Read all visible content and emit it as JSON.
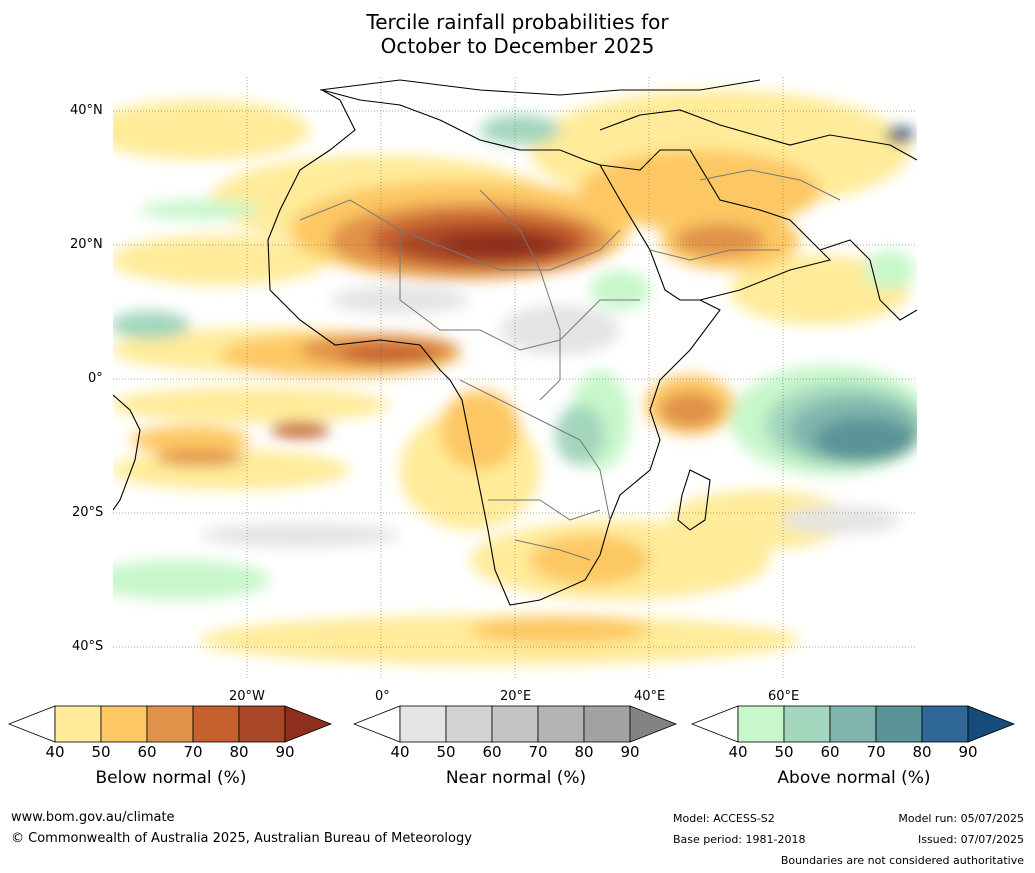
{
  "title": {
    "line1": "Tercile rainfall probabilities for",
    "line2": "October to December 2025"
  },
  "map": {
    "lat_labels": [
      "40°N",
      "20°N",
      "0°",
      "20°S",
      "40°S"
    ],
    "lon_labels": [
      "20°W",
      "0°",
      "20°E",
      "40°E",
      "60°E"
    ],
    "lon_range": [
      -40,
      80
    ],
    "lat_range": [
      -45,
      45
    ]
  },
  "colorbars": [
    {
      "label": "Below normal (%)",
      "ticks": [
        "40",
        "50",
        "60",
        "70",
        "80",
        "90"
      ],
      "colors": [
        "#ffeb99",
        "#fdc863",
        "#e0924a",
        "#c6612f",
        "#a84727",
        "#8e2e1c"
      ]
    },
    {
      "label": "Near normal (%)",
      "ticks": [
        "40",
        "50",
        "60",
        "70",
        "80",
        "90"
      ],
      "colors": [
        "#e4e4e4",
        "#d3d3d3",
        "#c4c4c4",
        "#b4b4b4",
        "#a2a2a2",
        "#838383"
      ]
    },
    {
      "label": "Above normal (%)",
      "ticks": [
        "40",
        "50",
        "60",
        "70",
        "80",
        "90"
      ],
      "colors": [
        "#c8f7cb",
        "#a3d6bd",
        "#7fb5ac",
        "#5a9498",
        "#2f6898",
        "#164c7c"
      ]
    }
  ],
  "footer": {
    "website": "www.bom.gov.au/climate",
    "copyright": "© Commonwealth of Australia 2025, Australian Bureau of Meteorology",
    "model": "Model: ACCESS-S2",
    "base_period": "Base period: 1981-2018",
    "model_run": "Model run: 05/07/2025",
    "issued": "Issued: 07/07/2025",
    "disclaimer": "Boundaries are not considered authoritative"
  }
}
